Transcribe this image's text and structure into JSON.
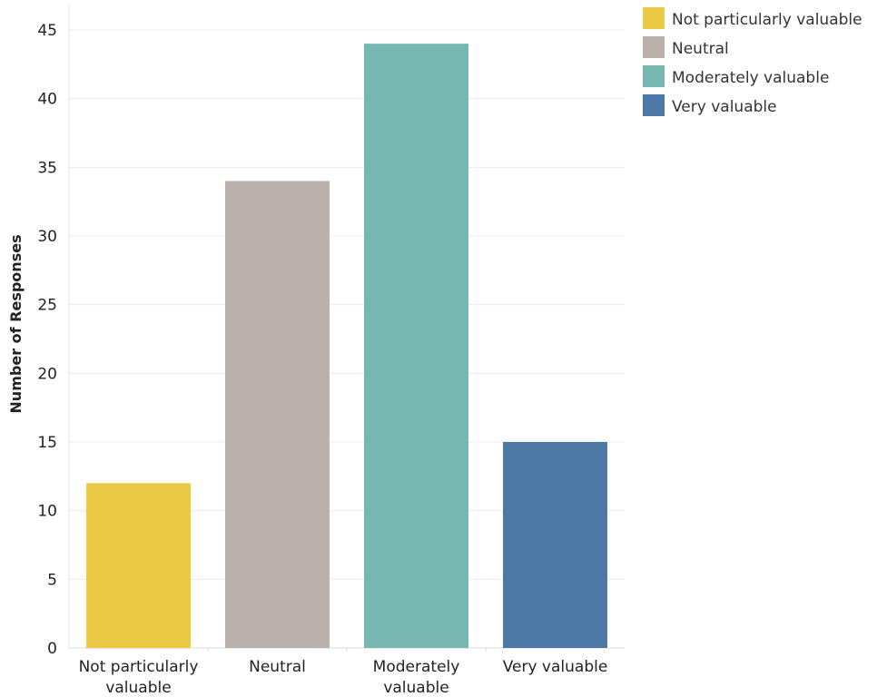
{
  "chart_data": {
    "type": "bar",
    "categories": [
      [
        "Not particularly",
        "valuable"
      ],
      [
        "Neutral"
      ],
      [
        "Moderately",
        "valuable"
      ],
      [
        "Very valuable"
      ]
    ],
    "values": [
      12,
      34,
      44,
      15
    ],
    "colors": [
      "#EBC944",
      "#BAB0AC",
      "#76B7B2",
      "#4E79A7"
    ],
    "ylabel": "Number of Responses",
    "ylim": [
      0,
      45
    ],
    "yticks": [
      0,
      5,
      10,
      15,
      20,
      25,
      30,
      35,
      40,
      45
    ],
    "grid": true,
    "legend": {
      "placement": "top-right",
      "entries": [
        {
          "label": "Not particularly valuable",
          "color": "#EBC944"
        },
        {
          "label": "Neutral",
          "color": "#BAB0AC"
        },
        {
          "label": "Moderately valuable",
          "color": "#76B7B2"
        },
        {
          "label": "Very valuable",
          "color": "#4E79A7"
        }
      ]
    }
  }
}
